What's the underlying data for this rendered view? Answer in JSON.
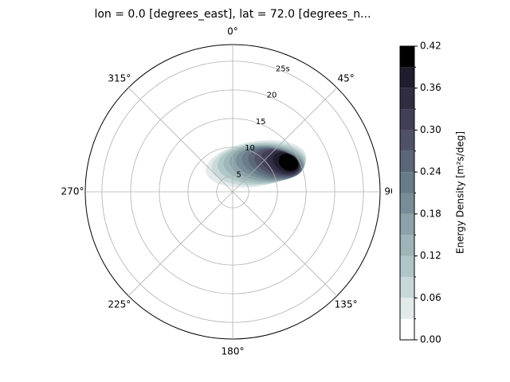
{
  "chart_data": {
    "type": "polar-contour",
    "title": "lon = 0.0 [degrees_east], lat = 72.0 [degrees_n...",
    "theta_direction": "clockwise",
    "theta_zero": "top",
    "thetaticks": [
      {
        "value": 0,
        "label": "0°"
      },
      {
        "value": 45,
        "label": "45°"
      },
      {
        "value": 90,
        "label": "90°"
      },
      {
        "value": 135,
        "label": "135°"
      },
      {
        "value": 180,
        "label": "180°"
      },
      {
        "value": 225,
        "label": "225°"
      },
      {
        "value": 270,
        "label": "270°"
      },
      {
        "value": 315,
        "label": "315°"
      }
    ],
    "rlim": [
      2.2,
      27.9
    ],
    "rticks": [
      5,
      10,
      15,
      20,
      {
        "value": 25,
        "label": "25s"
      }
    ],
    "grid": true,
    "colorbar": {
      "label": "Energy Density [m²s/deg]",
      "levels": [
        0,
        0.03,
        0.06,
        0.09,
        0.12,
        0.15,
        0.18,
        0.21,
        0.24,
        0.27,
        0.3,
        0.33,
        0.36,
        0.39,
        0.42
      ],
      "colors": [
        "#ffffff",
        "#e2eaea",
        "#c8d8d8",
        "#aec6c6",
        "#9db5b8",
        "#8aa2a8",
        "#788d97",
        "#687b88",
        "#5c6679",
        "#4f5169",
        "#403f57",
        "#302d42",
        "#1f1d2c",
        "#000000"
      ],
      "ticks": [
        {
          "value": 0,
          "label": "0.00"
        },
        {
          "value": 0.06,
          "label": "0.06"
        },
        {
          "value": 0.12,
          "label": "0.12"
        },
        {
          "value": 0.18,
          "label": "0.18"
        },
        {
          "value": 0.24,
          "label": "0.24"
        },
        {
          "value": 0.3,
          "label": "0.30"
        },
        {
          "value": 0.36,
          "label": "0.36"
        },
        {
          "value": 0.42,
          "label": "0.42"
        }
      ]
    }
  }
}
